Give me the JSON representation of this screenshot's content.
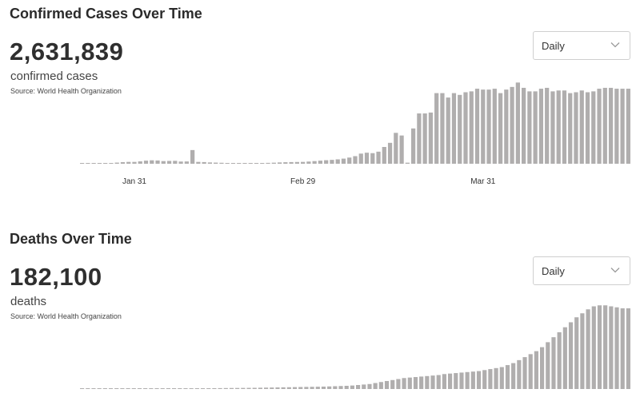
{
  "chart_data": [
    {
      "type": "bar",
      "title": "Confirmed Cases Over Time",
      "total": "2,631,839",
      "total_label": "confirmed cases",
      "source": "Source:  World Health Organization",
      "range_option": "Daily",
      "color": "#b0aeae",
      "x_tick_labels": [
        "Jan 31",
        "Feb 29",
        "Mar 31"
      ],
      "x_tick_index": [
        9,
        38,
        69
      ],
      "ylim": [
        0,
        95000
      ],
      "values": [
        90,
        200,
        300,
        400,
        600,
        900,
        1300,
        1800,
        2100,
        2100,
        2700,
        3500,
        3900,
        3700,
        3000,
        3200,
        3300,
        2500,
        2600,
        15500,
        2100,
        1900,
        1500,
        1300,
        1100,
        900,
        700,
        500,
        400,
        550,
        700,
        900,
        1000,
        1200,
        1500,
        1750,
        1900,
        2000,
        2100,
        2500,
        3000,
        3500,
        4000,
        4400,
        5000,
        5800,
        7000,
        8600,
        11500,
        12500,
        12000,
        13700,
        19000,
        23700,
        35000,
        32000,
        1200,
        40000,
        57000,
        57000,
        58000,
        80000,
        80000,
        75000,
        80000,
        78000,
        81000,
        82000,
        85000,
        84000,
        84000,
        85000,
        80000,
        84000,
        87000,
        92000,
        86000,
        82000,
        82000,
        85000,
        86000,
        82000,
        83000,
        83000,
        80000,
        81000,
        83000,
        81000,
        82000,
        85000,
        86000,
        86000,
        85000,
        85000,
        85000
      ]
    },
    {
      "type": "bar",
      "title": "Deaths Over Time",
      "total": "182,100",
      "total_label": "deaths",
      "source": "Source:  World Health Organization",
      "range_option": "Daily",
      "color": "#b0aeae",
      "ylim": [
        0,
        8500
      ],
      "values": [
        0,
        0,
        0,
        0,
        0,
        0,
        0,
        5,
        10,
        10,
        20,
        25,
        30,
        35,
        40,
        45,
        50,
        55,
        60,
        65,
        70,
        75,
        80,
        85,
        90,
        95,
        100,
        105,
        110,
        115,
        120,
        130,
        140,
        150,
        160,
        170,
        180,
        190,
        200,
        210,
        220,
        230,
        240,
        260,
        280,
        300,
        320,
        350,
        400,
        450,
        500,
        600,
        700,
        800,
        900,
        1000,
        1100,
        1150,
        1200,
        1250,
        1300,
        1350,
        1400,
        1500,
        1550,
        1600,
        1650,
        1700,
        1750,
        1800,
        1900,
        2000,
        2100,
        2200,
        2400,
        2600,
        2900,
        3200,
        3500,
        3800,
        4200,
        4700,
        5200,
        5700,
        6200,
        6700,
        7200,
        7600,
        8000,
        8300,
        8400,
        8400,
        8300,
        8200,
        8100,
        8100
      ]
    }
  ]
}
